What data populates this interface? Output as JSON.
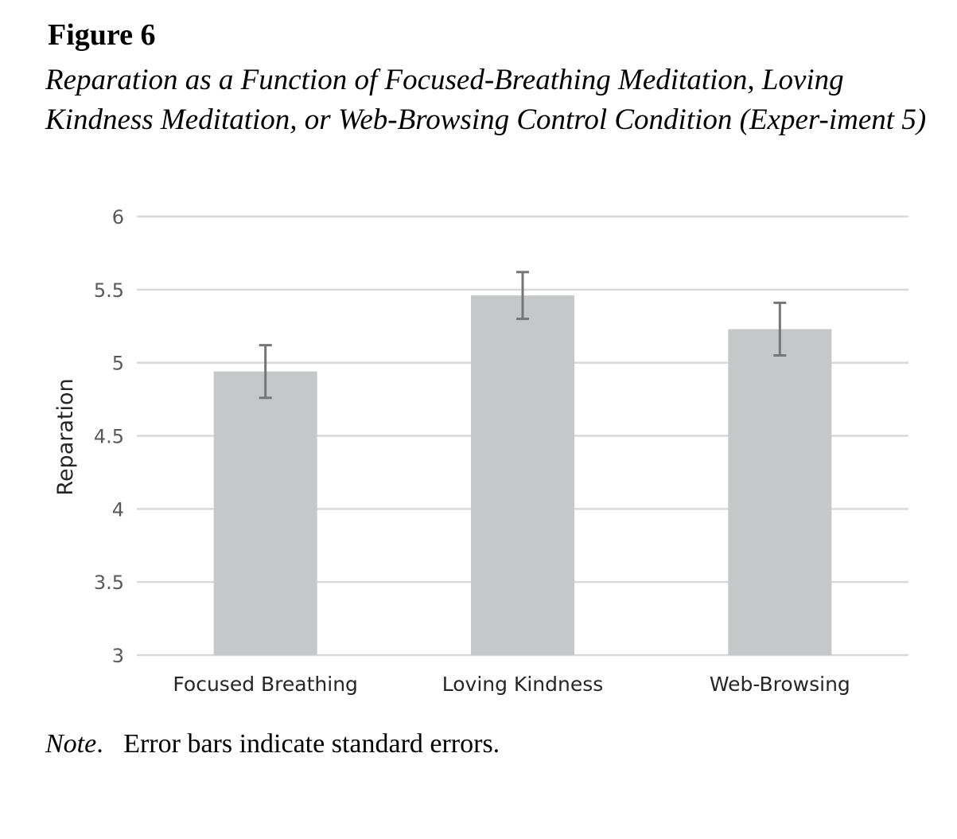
{
  "figure": {
    "label": "Figure 6",
    "title": "Reparation as a Function of Focused-Breathing Meditation, Loving Kindness Meditation, or Web-Browsing Control Condition (Exper-iment 5)",
    "note_label": "Note",
    "note_text": ".   Error bars indicate standard errors."
  },
  "chart_data": {
    "type": "bar",
    "categories": [
      "Focused Breathing",
      "Loving Kindness",
      "Web-Browsing"
    ],
    "values": [
      4.94,
      5.46,
      5.23
    ],
    "error": [
      0.18,
      0.16,
      0.18
    ],
    "title": "",
    "xlabel": "",
    "ylabel": "Reparation",
    "ylim": [
      3,
      6
    ],
    "yticks": [
      3,
      3.5,
      4,
      4.5,
      5,
      5.5,
      6
    ],
    "ytick_labels": [
      "3",
      "3.5",
      "4",
      "4.5",
      "5",
      "5.5",
      "6"
    ],
    "grid": true,
    "legend": "none",
    "bar_color": "#c6c7c9",
    "error_color": "#767676",
    "grid_color": "#d9d9d9"
  }
}
